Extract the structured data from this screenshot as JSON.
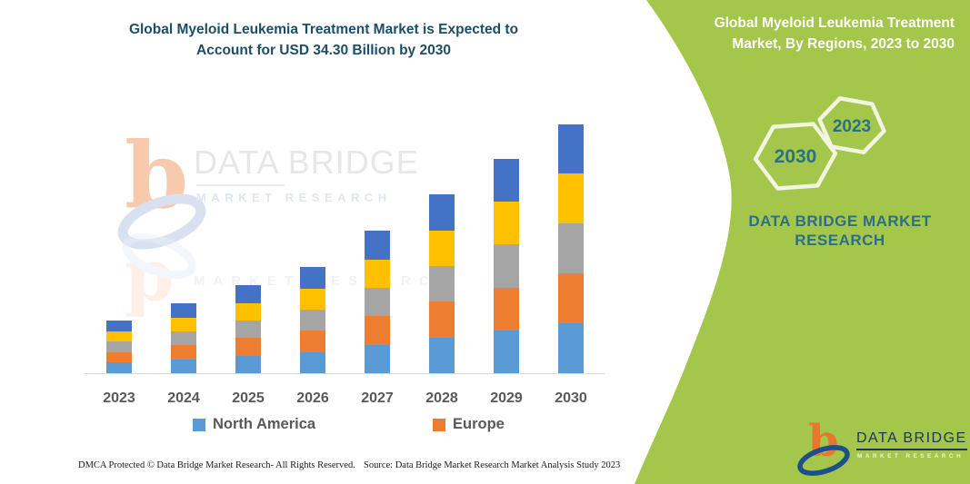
{
  "header": {
    "title": "Global Myeloid Leukemia Treatment Market is Expected to Account for USD 34.30 Billion by 2030",
    "title_color": "#1e4d66"
  },
  "side_panel": {
    "title": "Global Myeloid Leukemia Treatment Market, By Regions, 2023 to 2030",
    "background_color": "#a4c64a",
    "hexagon_large_label": "2030",
    "hexagon_small_label": "2023",
    "hexagon_stroke_color": "#f2f6e0",
    "brand_caption": "DATA BRIDGE MARKET RESEARCH",
    "brand_caption_color": "#2b7086"
  },
  "chart_data": {
    "type": "bar",
    "stacked": true,
    "title": "Global Myeloid Leukemia Treatment Market, By Regions, 2023 to 2030",
    "unit": "USD Billion",
    "categories": [
      "2023",
      "2024",
      "2025",
      "2026",
      "2027",
      "2028",
      "2029",
      "2030"
    ],
    "totals": [
      7.2,
      9.6,
      12.1,
      14.6,
      19.6,
      24.6,
      29.5,
      34.3
    ],
    "series": [
      {
        "name": "North America",
        "color": "#5B9BD5",
        "values": [
          1.44,
          1.92,
          2.42,
          2.92,
          3.92,
          4.92,
          5.9,
          6.86
        ]
      },
      {
        "name": "Europe",
        "color": "#ED7D31",
        "values": [
          1.44,
          1.92,
          2.42,
          2.92,
          3.92,
          4.92,
          5.9,
          6.86
        ]
      },
      {
        "name": "",
        "color": "#A5A5A5",
        "values": [
          1.44,
          1.92,
          2.42,
          2.92,
          3.92,
          4.92,
          5.9,
          6.86
        ]
      },
      {
        "name": "",
        "color": "#FFC000",
        "values": [
          1.44,
          1.92,
          2.42,
          2.92,
          3.92,
          4.92,
          5.9,
          6.86
        ]
      },
      {
        "name": "",
        "color": "#4472C4",
        "values": [
          1.44,
          1.92,
          2.42,
          2.92,
          3.92,
          4.92,
          5.9,
          6.86
        ]
      }
    ],
    "xlabel": "",
    "ylabel": "",
    "ylim": [
      0,
      36
    ],
    "grid": false,
    "y_axis_visible": false,
    "legend_position": "bottom"
  },
  "legend": {
    "items": [
      {
        "label": "North America",
        "color": "#5B9BD5"
      },
      {
        "label": "Europe",
        "color": "#ED7D31"
      }
    ]
  },
  "watermark": {
    "line1": "DATA BRIDGE",
    "line2": "MARKET RESEARCH",
    "ghost_line": "MARKET RESEARCH"
  },
  "footer": {
    "dmca": "DMCA Protected © Data Bridge Market Research-  All Rights Reserved.",
    "source": "Source: Data Bridge Market Research  Market Analysis Study 2023"
  },
  "brand_logo": {
    "line1": "DATA BRIDGE",
    "line2": "MARKET RESEARCH"
  }
}
